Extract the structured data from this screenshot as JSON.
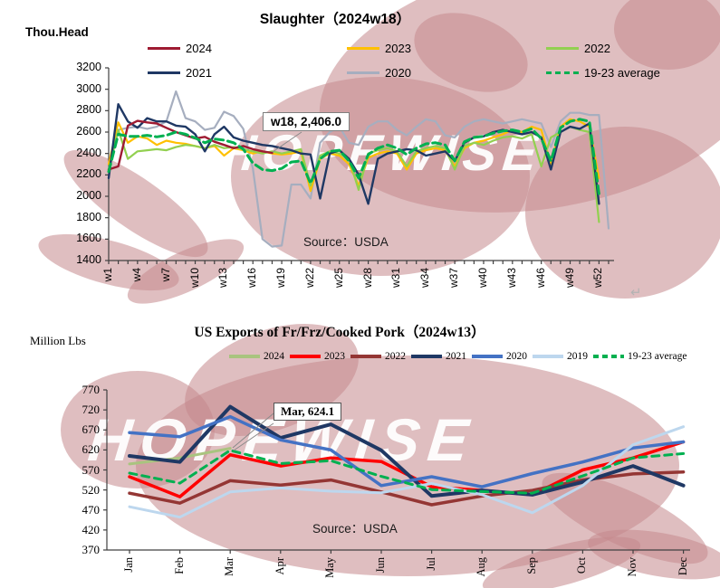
{
  "watermark": {
    "text": "HOPEWISE",
    "crab_color": "#c4888c"
  },
  "return_mark": "↵",
  "chart_data": [
    {
      "id": "slaughter",
      "type": "line",
      "title": "Slaughter（2024w18）",
      "ylabel": "Thou.Head",
      "source": "Source：USDA",
      "annotation": "w18, 2,406.0",
      "annotated_point": {
        "x": "w18",
        "y": 2406.0,
        "series": "2024"
      },
      "ylim": [
        1400,
        3200
      ],
      "yticks": [
        3200,
        3000,
        2800,
        2600,
        2400,
        2200,
        2000,
        1800,
        1600,
        1400
      ],
      "grid": false,
      "legend_position": "top",
      "categories": [
        "w1",
        "w2",
        "w3",
        "w4",
        "w5",
        "w6",
        "w7",
        "w8",
        "w9",
        "w10",
        "w11",
        "w12",
        "w13",
        "w14",
        "w15",
        "w16",
        "w17",
        "w18",
        "w19",
        "w20",
        "w21",
        "w22",
        "w23",
        "w24",
        "w25",
        "w26",
        "w27",
        "w28",
        "w29",
        "w30",
        "w31",
        "w32",
        "w33",
        "w34",
        "w35",
        "w36",
        "w37",
        "w38",
        "w39",
        "w40",
        "w41",
        "w42",
        "w43",
        "w44",
        "w45",
        "w46",
        "w47",
        "w48",
        "w49",
        "w50",
        "w51",
        "w52",
        "w53"
      ],
      "shown_xtick_labels": [
        "w1",
        "w4",
        "w7",
        "w10",
        "w13",
        "w16",
        "w19",
        "w22",
        "w25",
        "w28",
        "w31",
        "w34",
        "w37",
        "w40",
        "w43",
        "w46",
        "w49",
        "w52"
      ],
      "legend_rows": [
        [
          "2024",
          "2023",
          "2022"
        ],
        [
          "2021",
          "2020",
          "19-23 average"
        ]
      ],
      "series": [
        {
          "name": "2020",
          "color": "#A6AEBF",
          "dash": false,
          "width": 2.2,
          "values": [
            2250,
            2620,
            2640,
            2650,
            2630,
            2650,
            2700,
            2980,
            2730,
            2700,
            2620,
            2640,
            2790,
            2750,
            2630,
            2260,
            1600,
            1530,
            1540,
            2110,
            2110,
            1980,
            2500,
            2600,
            2650,
            2500,
            2480,
            2650,
            2700,
            2700,
            2620,
            2570,
            2650,
            2720,
            2700,
            2570,
            2550,
            2650,
            2700,
            2720,
            2700,
            2680,
            2700,
            2720,
            2700,
            2680,
            2460,
            2700,
            2780,
            2780,
            2760,
            2760,
            1700
          ]
        },
        {
          "name": "2023",
          "color": "#FFC000",
          "dash": false,
          "width": 2.2,
          "values": [
            2300,
            2690,
            2500,
            2560,
            2540,
            2480,
            2520,
            2500,
            2490,
            2470,
            2450,
            2470,
            2380,
            2450,
            2430,
            2400,
            2420,
            2400,
            2390,
            2400,
            2420,
            2050,
            2350,
            2400,
            2380,
            2300,
            2100,
            2360,
            2400,
            2420,
            2400,
            2250,
            2400,
            2430,
            2450,
            2430,
            2280,
            2450,
            2500,
            2520,
            2550,
            2580,
            2620,
            2600,
            2650,
            2620,
            2300,
            2650,
            2720,
            2700,
            2650,
            2170
          ]
        },
        {
          "name": "2022",
          "color": "#92D050",
          "dash": false,
          "width": 2.2,
          "values": [
            2240,
            2620,
            2350,
            2420,
            2430,
            2440,
            2430,
            2460,
            2480,
            2470,
            2450,
            2480,
            2450,
            2460,
            2440,
            2420,
            2400,
            2420,
            2400,
            2420,
            2440,
            2100,
            2380,
            2420,
            2400,
            2350,
            2060,
            2400,
            2430,
            2450,
            2420,
            2280,
            2420,
            2450,
            2470,
            2450,
            2250,
            2470,
            2500,
            2480,
            2520,
            2550,
            2560,
            2540,
            2580,
            2280,
            2550,
            2600,
            2650,
            2620,
            2600,
            1760
          ]
        },
        {
          "name": "2021",
          "color": "#1F3864",
          "dash": false,
          "width": 2.4,
          "values": [
            2170,
            2860,
            2700,
            2640,
            2730,
            2700,
            2700,
            2660,
            2650,
            2580,
            2420,
            2580,
            2650,
            2550,
            2520,
            2500,
            2480,
            2470,
            2450,
            2430,
            2400,
            2390,
            1980,
            2400,
            2430,
            2350,
            2200,
            1930,
            2350,
            2400,
            2420,
            2440,
            2430,
            2380,
            2400,
            2420,
            2330,
            2500,
            2550,
            2560,
            2600,
            2620,
            2600,
            2580,
            2600,
            2550,
            2250,
            2600,
            2650,
            2630,
            2680,
            1930
          ]
        },
        {
          "name": "2024",
          "color": "#9E1B32",
          "dash": false,
          "width": 2.4,
          "values": [
            2250,
            2280,
            2660,
            2705,
            2690,
            2680,
            2640,
            2600,
            2570,
            2540,
            2555,
            2510,
            2480,
            2450,
            2470,
            2440,
            2420,
            2406
          ]
        },
        {
          "name": "19-23 average",
          "color": "#00B050",
          "dash": true,
          "width": 3,
          "values": [
            2230,
            2580,
            2560,
            2560,
            2570,
            2555,
            2570,
            2600,
            2580,
            2545,
            2500,
            2535,
            2525,
            2500,
            2440,
            2310,
            2250,
            2240,
            2260,
            2320,
            2330,
            2120,
            2350,
            2420,
            2430,
            2330,
            2170,
            2390,
            2450,
            2480,
            2450,
            2390,
            2450,
            2490,
            2500,
            2480,
            2330,
            2510,
            2550,
            2560,
            2590,
            2610,
            2620,
            2600,
            2630,
            2540,
            2330,
            2640,
            2700,
            2720,
            2700,
            2020
          ]
        }
      ]
    },
    {
      "id": "pork-exports",
      "type": "line",
      "title": "US Exports of Fr/Frz/Cooked Pork（2024w13）",
      "ylabel": "Million Lbs",
      "source": "Source：USDA",
      "annotation": "Mar, 624.1",
      "annotated_point": {
        "x": "Mar",
        "y": 624.1,
        "series": "2024"
      },
      "ylim": [
        370,
        770
      ],
      "yticks": [
        770,
        720,
        670,
        620,
        570,
        520,
        470,
        420,
        370
      ],
      "grid": false,
      "legend_position": "top",
      "categories": [
        "Jan",
        "Feb",
        "Mar",
        "Apr",
        "May",
        "Jun",
        "Jul",
        "Aug",
        "Sep",
        "Oct",
        "Nov",
        "Dec"
      ],
      "shown_xtick_labels": [
        "Jan",
        "Feb",
        "Mar",
        "Apr",
        "May",
        "Jun",
        "Jul",
        "Aug",
        "Sep",
        "Oct",
        "Nov",
        "Dec"
      ],
      "legend_rows": [
        [
          "2024",
          "2023",
          "2022",
          "2021",
          "2020",
          "2019",
          "19-23 average"
        ]
      ],
      "series": [
        {
          "name": "2024",
          "color": "#A9C47F",
          "dash": false,
          "width": 3,
          "values": [
            585,
            600,
            624.1
          ]
        },
        {
          "name": "2023",
          "color": "#FF0000",
          "dash": false,
          "width": 3.5,
          "values": [
            553,
            503,
            608,
            580,
            600,
            591,
            528,
            519,
            508,
            570,
            600,
            640
          ]
        },
        {
          "name": "2022",
          "color": "#943634",
          "dash": false,
          "width": 3.5,
          "values": [
            512,
            487,
            543,
            532,
            545,
            515,
            483,
            505,
            519,
            545,
            560,
            565
          ]
        },
        {
          "name": "2021",
          "color": "#1F3864",
          "dash": false,
          "width": 4,
          "values": [
            605,
            590,
            728,
            650,
            684,
            619,
            505,
            519,
            508,
            540,
            580,
            531
          ]
        },
        {
          "name": "2020",
          "color": "#4472C4",
          "dash": false,
          "width": 3.5,
          "values": [
            663,
            653,
            703,
            645,
            620,
            531,
            553,
            528,
            561,
            590,
            625,
            640
          ]
        },
        {
          "name": "2019",
          "color": "#BDD7EE",
          "dash": false,
          "width": 3,
          "values": [
            478,
            452,
            515,
            525,
            517,
            513,
            536,
            508,
            463,
            531,
            633,
            678
          ]
        },
        {
          "name": "19-23 average",
          "color": "#00B050",
          "dash": true,
          "width": 3,
          "values": [
            562,
            537,
            619,
            586,
            593,
            554,
            521,
            516,
            512,
            555,
            600,
            611
          ]
        }
      ]
    }
  ]
}
